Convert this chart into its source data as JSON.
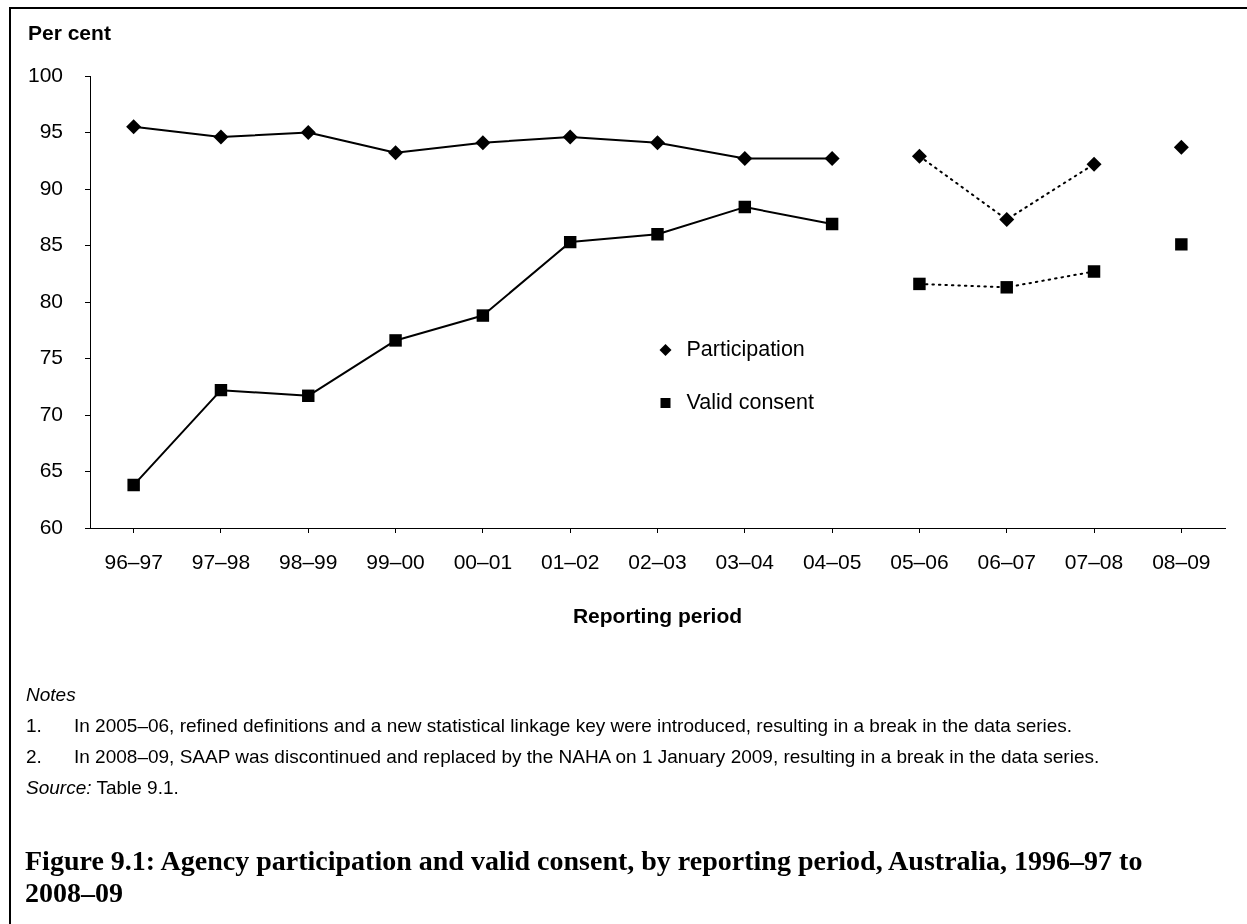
{
  "chart_data": {
    "type": "line",
    "title": "Figure 9.1: Agency participation and valid consent, by reporting period, Australia, 1996–97 to 2008–09",
    "ylabel": "Per cent",
    "xlabel": "Reporting period",
    "categories": [
      "96–97",
      "97–98",
      "98–99",
      "99–00",
      "00–01",
      "01–02",
      "02–03",
      "03–04",
      "04–05",
      "05–06",
      "06–07",
      "07–08",
      "08–09"
    ],
    "series": [
      {
        "name": "Participation",
        "color": "#000000",
        "marker": "diamond",
        "line_style": "solid",
        "values": [
          95.5,
          94.6,
          95.0,
          93.2,
          94.1,
          94.6,
          94.1,
          92.7,
          92.7,
          null,
          null,
          null,
          null
        ]
      },
      {
        "color": "#000000",
        "marker": "diamond",
        "line_style": "dotted",
        "values": [
          null,
          null,
          null,
          null,
          null,
          null,
          null,
          null,
          null,
          92.9,
          87.3,
          92.2,
          null
        ]
      },
      {
        "type": "scatter",
        "color": "#000000",
        "marker": "diamond",
        "values": [
          null,
          null,
          null,
          null,
          null,
          null,
          null,
          null,
          null,
          null,
          null,
          null,
          93.7
        ]
      },
      {
        "name": "Valid consent",
        "color": "#000000",
        "marker": "square",
        "line_style": "solid",
        "values": [
          63.8,
          72.2,
          71.7,
          76.6,
          78.8,
          85.3,
          86.0,
          88.4,
          86.9,
          null,
          null,
          null,
          null
        ]
      },
      {
        "color": "#000000",
        "marker": "square",
        "line_style": "dotted",
        "values": [
          null,
          null,
          null,
          null,
          null,
          null,
          null,
          null,
          null,
          81.6,
          81.3,
          82.7,
          null
        ]
      },
      {
        "type": "scatter",
        "color": "#000000",
        "marker": "square",
        "values": [
          null,
          null,
          null,
          null,
          null,
          null,
          null,
          null,
          null,
          null,
          null,
          null,
          85.1
        ]
      }
    ],
    "ylim": [
      60,
      100
    ],
    "yticks": [
      60,
      65,
      70,
      75,
      80,
      85,
      90,
      95,
      100
    ],
    "legend": "center",
    "annotations": [
      "Notes",
      "1. In 2005–06, refined definitions and a new statistical linkage key were introduced, resulting in a break in the data series.",
      "2. In 2008–09, SAAP was discontinued and replaced by the NAHA on 1 January 2009, resulting in a break in the data series.",
      "Source: Table 9.1."
    ]
  }
}
